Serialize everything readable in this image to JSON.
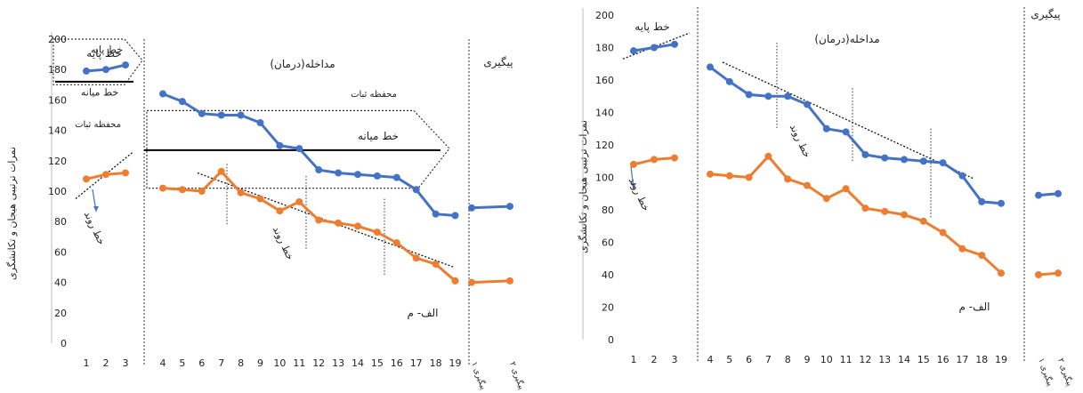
{
  "chart_data": [
    {
      "type": "line",
      "title": "",
      "ylabel": "نمرات ترتیبی هیجان و تکانشگری",
      "ylim": [
        0,
        200
      ],
      "yticks": [
        0,
        20,
        40,
        60,
        80,
        100,
        120,
        140,
        160,
        180,
        200
      ],
      "phase_labels": {
        "baseline": "خط پایه",
        "treatment": "مداخله(درمان)",
        "followup": "پیگیری"
      },
      "annotations": {
        "stability_envelope": "محفظه ثبات",
        "median_line": "خط میانه",
        "trend_line": "خط روند",
        "case_label": "الف- م"
      },
      "x_baseline": [
        "1",
        "2",
        "3"
      ],
      "x_treatment": [
        "4",
        "5",
        "6",
        "7",
        "8",
        "9",
        "10",
        "11",
        "12",
        "13",
        "14",
        "15",
        "16",
        "17",
        "18",
        "19"
      ],
      "x_followup": [
        "پیگیری ۱",
        "پیگیری ۲"
      ],
      "series": [
        {
          "color": "#4472C4",
          "baseline": [
            179,
            180,
            183
          ],
          "treatment": [
            164,
            159,
            151,
            150,
            150,
            145,
            130,
            128,
            114,
            112,
            111,
            110,
            109,
            101,
            85,
            84
          ],
          "followup": [
            89,
            90
          ]
        },
        {
          "color": "#ED7D31",
          "baseline": [
            108,
            111,
            112
          ],
          "treatment": [
            102,
            101,
            100,
            113,
            99,
            95,
            87,
            93,
            81,
            79,
            77,
            73,
            66,
            56,
            52,
            41
          ],
          "followup": [
            40,
            41
          ]
        }
      ]
    },
    {
      "type": "line",
      "title": "",
      "ylabel": "نمرات ترتیبی هیجان و تکانشگری",
      "ylim": [
        0,
        200
      ],
      "yticks": [
        0,
        20,
        40,
        60,
        80,
        100,
        120,
        140,
        160,
        180,
        200
      ],
      "phase_labels": {
        "baseline": "خط پایه",
        "treatment": "مداخله(درمان)",
        "followup": "پیگیری"
      },
      "annotations": {
        "trend_line": "خط روند",
        "case_label": "الف- م"
      },
      "x_baseline": [
        "1",
        "2",
        "3"
      ],
      "x_treatment": [
        "4",
        "5",
        "6",
        "7",
        "8",
        "9",
        "10",
        "11",
        "12",
        "13",
        "14",
        "15",
        "16",
        "17",
        "18",
        "19"
      ],
      "x_followup": [
        "پیگیری ۱",
        "پیگیری ۲"
      ],
      "series": [
        {
          "color": "#4472C4",
          "baseline": [
            178,
            180,
            182
          ],
          "treatment": [
            168,
            159,
            151,
            150,
            150,
            145,
            130,
            128,
            114,
            112,
            111,
            110,
            109,
            101,
            85,
            84
          ],
          "followup": [
            89,
            90
          ]
        },
        {
          "color": "#ED7D31",
          "baseline": [
            108,
            111,
            112
          ],
          "treatment": [
            102,
            101,
            100,
            113,
            99,
            95,
            87,
            93,
            81,
            79,
            77,
            73,
            66,
            56,
            52,
            41
          ],
          "followup": [
            40,
            41
          ]
        }
      ]
    }
  ]
}
